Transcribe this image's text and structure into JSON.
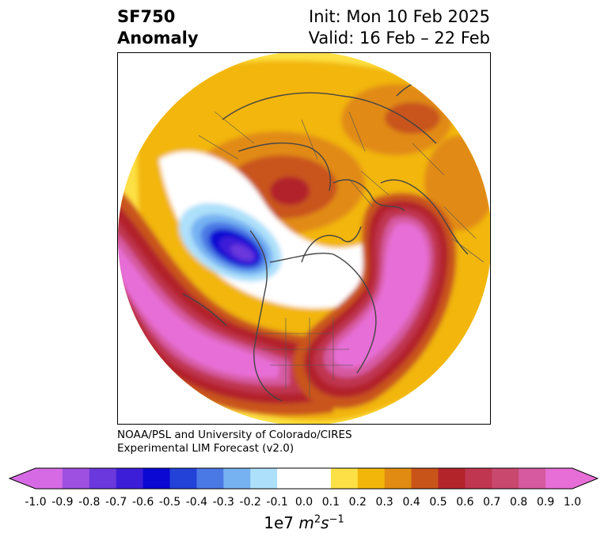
{
  "header": {
    "variable": "SF750",
    "field": "Anomaly",
    "init": "Init: Mon 10 Feb 2025",
    "valid": "Valid: 16 Feb – 22 Feb"
  },
  "credit": {
    "line1": "NOAA/PSL and University of Colorado/CIRES",
    "line2": "Experimental LIM Forecast (v2.0)"
  },
  "colorbar": {
    "ticks": [
      "-1.0",
      "-0.9",
      "-0.8",
      "-0.7",
      "-0.6",
      "-0.5",
      "-0.4",
      "-0.3",
      "-0.2",
      "-0.1",
      "0.0",
      "0.1",
      "0.2",
      "0.3",
      "0.4",
      "0.5",
      "0.6",
      "0.7",
      "0.8",
      "0.9",
      "1.0"
    ],
    "colors": [
      "#d66ae4",
      "#9e50e0",
      "#6a38dc",
      "#3c1ed8",
      "#0a08d2",
      "#2242d8",
      "#4a78e4",
      "#76b2f2",
      "#ade0fa",
      "#ffffff",
      "#ffffff",
      "#fde045",
      "#f2b60a",
      "#e18b12",
      "#c9541a",
      "#b2242a",
      "#c03550",
      "#c9486e",
      "#d65aa0",
      "#e76ed6"
    ],
    "units_base": "1e7 ",
    "units_m": "m",
    "units_m_exp": "2",
    "units_s": "s",
    "units_s_exp": "−1"
  },
  "map": {
    "projection": "north-polar-stereographic",
    "features": [
      "coastlines",
      "country-borders",
      "state-provinces"
    ],
    "anomaly_centers": [
      {
        "region": "North Pacific / Alaska",
        "sign": "negative",
        "peak": -0.7
      },
      {
        "region": "Western North America",
        "sign": "positive",
        "peak": 1.0
      },
      {
        "region": "Eastern North America / North Atlantic",
        "sign": "positive",
        "peak": 1.0
      },
      {
        "region": "Arctic / Siberia",
        "sign": "positive",
        "peak": 0.6
      },
      {
        "region": "Europe / Middle East",
        "sign": "positive",
        "peak": 0.3
      }
    ]
  }
}
